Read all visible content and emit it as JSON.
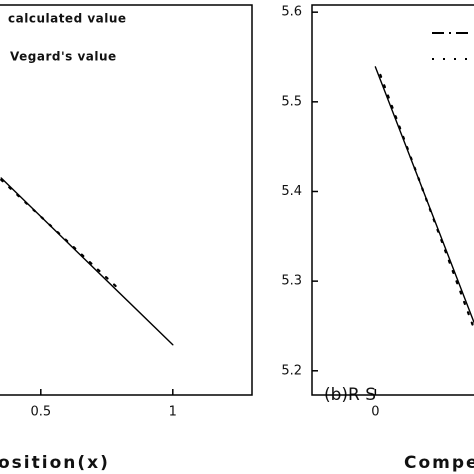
{
  "chart_data": [
    {
      "type": "line",
      "xlabel": "osition(x)",
      "xlim": [
        -0.2,
        1.3
      ],
      "xticks": [
        0.5,
        1.0
      ],
      "ylim": [
        5.173,
        5.608
      ],
      "series": [
        {
          "name": "calculated value",
          "color": "#000000",
          "style": "solid",
          "x": [
            0.35,
            1.0
          ],
          "values": [
            5.415,
            5.229
          ]
        },
        {
          "name": "Vegard's value",
          "color": "#000000",
          "style": "dotted",
          "x": [
            0.35,
            0.8
          ],
          "values": [
            5.413,
            5.29
          ]
        }
      ]
    },
    {
      "type": "line",
      "xlabel": "Compe",
      "annotation": "(b)R S",
      "xlim": [
        -0.24,
        0.76
      ],
      "xticks": [
        0.0
      ],
      "ylim": [
        5.173,
        5.608
      ],
      "yticks": [
        5.2,
        5.3,
        5.4,
        5.5,
        5.6
      ],
      "series": [
        {
          "color": "#000000",
          "style": "solid",
          "x": [
            0.0,
            0.375
          ],
          "values": [
            5.539,
            5.253
          ]
        },
        {
          "color": "#000000",
          "style": "dotted",
          "x": [
            0.019,
            0.375
          ],
          "values": [
            5.53,
            5.246
          ]
        }
      ]
    }
  ]
}
